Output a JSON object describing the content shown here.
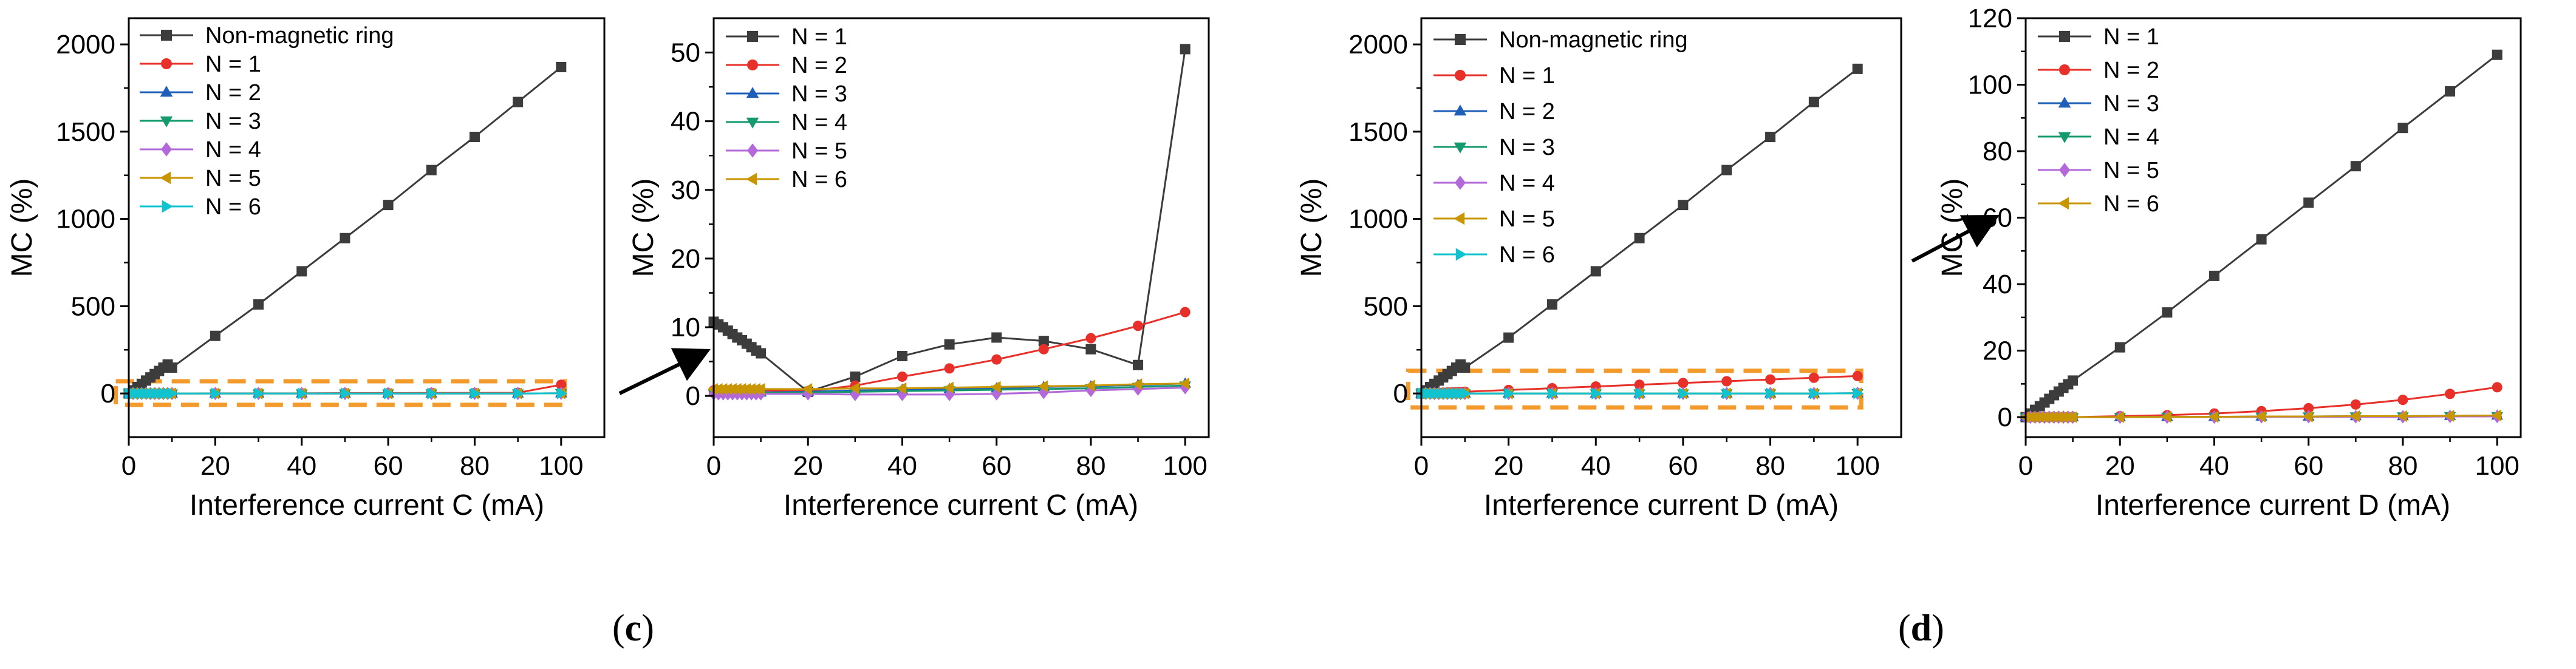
{
  "panel_labels": {
    "c": {
      "open": "(",
      "letter": "c",
      "close": ")"
    },
    "d": {
      "open": "(",
      "letter": "d",
      "close": ")"
    }
  },
  "colors": {
    "N0": "#3c3c3c",
    "N1": "#e8302a",
    "N2": "#1f5fb8",
    "N3": "#149a6e",
    "N4": "#b36ad8",
    "N5": "#c79600",
    "N6": "#10c3cf",
    "highlight_box": "#f29a2c",
    "axis": "#000000"
  },
  "chart_data": [
    {
      "id": "c_main",
      "type": "line",
      "xlabel": "Interference current C (mA)",
      "ylabel": "MC (%)",
      "xlim": [
        0,
        110
      ],
      "ylim": [
        -250,
        2150
      ],
      "xticks": [
        0,
        20,
        40,
        60,
        80,
        100
      ],
      "yticks": [
        0,
        500,
        1000,
        1500,
        2000
      ],
      "legend_position": "top-left",
      "grid": false,
      "highlight_box": [
        -3,
        100,
        -65,
        70
      ],
      "x": [
        0,
        1,
        2,
        3,
        4,
        5,
        6,
        7,
        8,
        9,
        10,
        20,
        30,
        40,
        50,
        60,
        70,
        80,
        90,
        100
      ],
      "series": [
        {
          "name": "Non-magnetic ring",
          "color_key": "N0",
          "marker": "square",
          "values": [
            0,
            18,
            37,
            55,
            74,
            92,
            111,
            129,
            148,
            166,
            148,
            330,
            510,
            700,
            890,
            1080,
            1280,
            1470,
            1670,
            1870
          ]
        },
        {
          "name": "N = 1",
          "color_key": "N1",
          "marker": "circle",
          "values": [
            0,
            0,
            0,
            0,
            0,
            0,
            0,
            0,
            0,
            0,
            0,
            1,
            1,
            1,
            2,
            2,
            3,
            3,
            4,
            50
          ]
        },
        {
          "name": "N = 2",
          "color_key": "N2",
          "marker": "triangle-up",
          "values": [
            0,
            0,
            0,
            0,
            0,
            0,
            0,
            0,
            0,
            0,
            0,
            0,
            0,
            0,
            0,
            0,
            0,
            0,
            0,
            1
          ]
        },
        {
          "name": "N = 3",
          "color_key": "N3",
          "marker": "triangle-down",
          "values": [
            0,
            0,
            0,
            0,
            0,
            0,
            0,
            0,
            0,
            0,
            0,
            0,
            0,
            0,
            0,
            0,
            0,
            0,
            0,
            1
          ]
        },
        {
          "name": "N = 4",
          "color_key": "N4",
          "marker": "diamond",
          "values": [
            0,
            0,
            0,
            0,
            0,
            0,
            0,
            0,
            0,
            0,
            0,
            0,
            0,
            0,
            0,
            0,
            0,
            0,
            0,
            1
          ]
        },
        {
          "name": "N = 5",
          "color_key": "N5",
          "marker": "triangle-left",
          "values": [
            0,
            0,
            0,
            0,
            0,
            0,
            0,
            0,
            0,
            0,
            0,
            0,
            0,
            0,
            0,
            0,
            0,
            0,
            0,
            1
          ]
        },
        {
          "name": "N = 6",
          "color_key": "N6",
          "marker": "triangle-right",
          "values": [
            0,
            0,
            0,
            0,
            0,
            0,
            0,
            0,
            0,
            0,
            0,
            0,
            0,
            0,
            0,
            0,
            0,
            0,
            0,
            1
          ]
        }
      ]
    },
    {
      "id": "c_zoom",
      "type": "line",
      "xlabel": "Interference current C (mA)",
      "ylabel": "MC (%)",
      "xlim": [
        0,
        105
      ],
      "ylim": [
        -6,
        55
      ],
      "xticks": [
        0,
        20,
        40,
        60,
        80,
        100
      ],
      "yticks": [
        0,
        10,
        20,
        30,
        40,
        50
      ],
      "legend_position": "top-left",
      "grid": false,
      "x": [
        0,
        1,
        2,
        3,
        4,
        5,
        6,
        7,
        8,
        9,
        10,
        20,
        30,
        40,
        50,
        60,
        70,
        80,
        90,
        100
      ],
      "series": [
        {
          "name": "N = 1",
          "color_key": "N0",
          "marker": "square",
          "values": [
            10.8,
            10.4,
            10.0,
            9.5,
            9.0,
            8.5,
            8.1,
            7.6,
            7.1,
            6.6,
            6.2,
            0.6,
            2.8,
            5.8,
            7.5,
            8.5,
            8.0,
            6.8,
            4.5,
            50.5
          ]
        },
        {
          "name": "N = 2",
          "color_key": "N1",
          "marker": "circle",
          "values": [
            0.8,
            0.8,
            0.8,
            0.8,
            0.8,
            0.8,
            0.8,
            0.8,
            0.8,
            0.8,
            0.8,
            0.7,
            1.5,
            2.8,
            4.0,
            5.3,
            6.8,
            8.4,
            10.2,
            12.2
          ]
        },
        {
          "name": "N = 3",
          "color_key": "N2",
          "marker": "triangle-up",
          "values": [
            0.5,
            0.5,
            0.5,
            0.5,
            0.5,
            0.5,
            0.5,
            0.5,
            0.5,
            0.5,
            0.5,
            0.6,
            0.8,
            0.9,
            1.0,
            1.1,
            1.3,
            1.4,
            1.6,
            1.8
          ]
        },
        {
          "name": "N = 4",
          "color_key": "N3",
          "marker": "triangle-down",
          "values": [
            0.4,
            0.4,
            0.4,
            0.4,
            0.4,
            0.4,
            0.4,
            0.4,
            0.4,
            0.4,
            0.4,
            0.5,
            0.6,
            0.7,
            0.8,
            0.9,
            1.0,
            1.1,
            1.3,
            1.5
          ]
        },
        {
          "name": "N = 5",
          "color_key": "N4",
          "marker": "diamond",
          "values": [
            0.3,
            0.3,
            0.3,
            0.3,
            0.3,
            0.3,
            0.3,
            0.3,
            0.3,
            0.3,
            0.3,
            0.3,
            0.2,
            0.2,
            0.2,
            0.3,
            0.5,
            0.8,
            1.0,
            1.2
          ]
        },
        {
          "name": "N = 6",
          "color_key": "N5",
          "marker": "triangle-left",
          "values": [
            1.0,
            1.0,
            1.0,
            1.0,
            1.0,
            1.0,
            1.0,
            1.0,
            1.0,
            1.0,
            1.0,
            1.0,
            1.1,
            1.1,
            1.2,
            1.3,
            1.4,
            1.5,
            1.7,
            1.8
          ]
        }
      ]
    },
    {
      "id": "d_main",
      "type": "line",
      "xlabel": "Interference current D (mA)",
      "ylabel": "MC (%)",
      "xlim": [
        0,
        110
      ],
      "ylim": [
        -250,
        2150
      ],
      "xticks": [
        0,
        20,
        40,
        60,
        80,
        100
      ],
      "yticks": [
        0,
        500,
        1000,
        1500,
        2000
      ],
      "legend_position": "top-left",
      "grid": false,
      "highlight_box": [
        -3,
        100,
        -80,
        130
      ],
      "x": [
        0,
        1,
        2,
        3,
        4,
        5,
        6,
        7,
        8,
        9,
        10,
        20,
        30,
        40,
        50,
        60,
        70,
        80,
        90,
        100
      ],
      "series": [
        {
          "name": "Non-magnetic ring",
          "color_key": "N0",
          "marker": "square",
          "values": [
            0,
            18,
            37,
            55,
            74,
            92,
            111,
            129,
            148,
            166,
            148,
            320,
            510,
            700,
            890,
            1080,
            1280,
            1470,
            1670,
            1860
          ]
        },
        {
          "name": "N = 1",
          "color_key": "N1",
          "marker": "circle",
          "values": [
            0,
            1,
            2,
            3,
            4,
            5,
            6,
            7,
            8,
            9,
            10,
            20,
            30,
            40,
            50,
            60,
            70,
            80,
            90,
            100
          ]
        },
        {
          "name": "N = 2",
          "color_key": "N2",
          "marker": "triangle-up",
          "values": [
            0,
            0,
            0,
            0,
            0,
            0,
            0,
            0,
            0,
            0,
            0,
            0,
            0,
            0,
            0,
            0,
            0,
            0,
            0,
            1
          ]
        },
        {
          "name": "N = 3",
          "color_key": "N3",
          "marker": "triangle-down",
          "values": [
            0,
            0,
            0,
            0,
            0,
            0,
            0,
            0,
            0,
            0,
            0,
            0,
            0,
            0,
            0,
            0,
            0,
            0,
            0,
            1
          ]
        },
        {
          "name": "N = 4",
          "color_key": "N4",
          "marker": "diamond",
          "values": [
            0,
            0,
            0,
            0,
            0,
            0,
            0,
            0,
            0,
            0,
            0,
            0,
            0,
            0,
            0,
            0,
            0,
            0,
            0,
            1
          ]
        },
        {
          "name": "N = 5",
          "color_key": "N5",
          "marker": "triangle-left",
          "values": [
            0,
            0,
            0,
            0,
            0,
            0,
            0,
            0,
            0,
            0,
            0,
            0,
            0,
            0,
            0,
            0,
            0,
            0,
            0,
            1
          ]
        },
        {
          "name": "N = 6",
          "color_key": "N6",
          "marker": "triangle-right",
          "values": [
            0,
            0,
            0,
            0,
            0,
            0,
            0,
            0,
            0,
            0,
            0,
            0,
            0,
            0,
            0,
            0,
            0,
            0,
            0,
            1
          ]
        }
      ]
    },
    {
      "id": "d_zoom",
      "type": "line",
      "xlabel": "Interference current D (mA)",
      "ylabel": "MC (%)",
      "xlim": [
        0,
        105
      ],
      "ylim": [
        -6,
        120
      ],
      "xticks": [
        0,
        20,
        40,
        60,
        80,
        100
      ],
      "yticks": [
        0,
        20,
        40,
        60,
        80,
        100,
        120
      ],
      "legend_position": "top-left",
      "grid": false,
      "x": [
        0,
        1,
        2,
        3,
        4,
        5,
        6,
        7,
        8,
        9,
        10,
        20,
        30,
        40,
        50,
        60,
        70,
        80,
        90,
        100
      ],
      "series": [
        {
          "name": "N = 1",
          "color_key": "N0",
          "marker": "square",
          "values": [
            0,
            1.1,
            2.2,
            3.3,
            4.4,
            5.5,
            6.6,
            7.7,
            8.8,
            9.9,
            11,
            21,
            31.5,
            42.5,
            53.5,
            64.5,
            75.5,
            87,
            98,
            109
          ]
        },
        {
          "name": "N = 2",
          "color_key": "N1",
          "marker": "circle",
          "values": [
            0,
            0,
            0,
            0,
            0,
            0,
            0,
            0,
            0,
            0,
            0,
            0.3,
            0.6,
            1.1,
            1.8,
            2.7,
            3.8,
            5.2,
            7.0,
            9.0
          ]
        },
        {
          "name": "N = 3",
          "color_key": "N2",
          "marker": "triangle-up",
          "values": [
            0,
            0,
            0,
            0,
            0,
            0,
            0,
            0,
            0,
            0,
            0,
            0,
            0.1,
            0.1,
            0.2,
            0.2,
            0.3,
            0.3,
            0.4,
            0.5
          ]
        },
        {
          "name": "N = 4",
          "color_key": "N3",
          "marker": "triangle-down",
          "values": [
            0,
            0,
            0,
            0,
            0,
            0,
            0,
            0,
            0,
            0,
            0,
            0,
            0.1,
            0.1,
            0.1,
            0.2,
            0.2,
            0.2,
            0.3,
            0.3
          ]
        },
        {
          "name": "N = 5",
          "color_key": "N4",
          "marker": "diamond",
          "values": [
            0,
            0,
            0,
            0,
            0,
            0,
            0,
            0,
            0,
            0,
            0,
            0,
            0,
            0,
            0.1,
            0.1,
            0.1,
            0.1,
            0.2,
            0.2
          ]
        },
        {
          "name": "N = 6",
          "color_key": "N5",
          "marker": "triangle-left",
          "values": [
            0,
            0,
            0,
            0,
            0,
            0,
            0,
            0,
            0,
            0,
            0,
            0,
            0.1,
            0.1,
            0.2,
            0.2,
            0.3,
            0.3,
            0.4,
            0.5
          ]
        }
      ]
    }
  ]
}
